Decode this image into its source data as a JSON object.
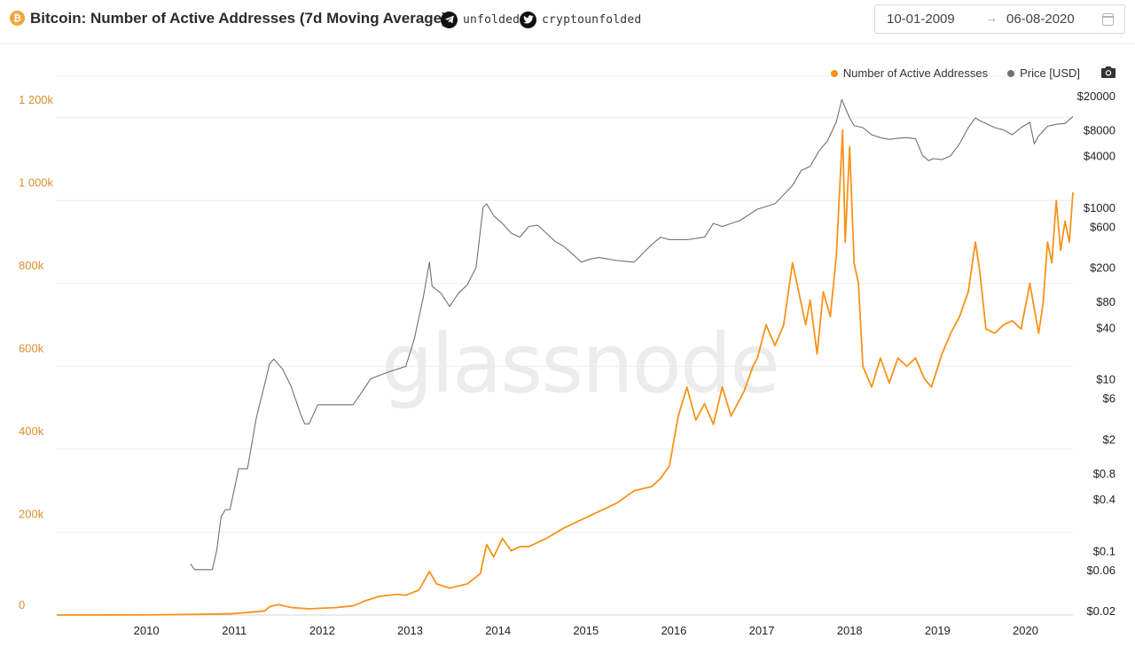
{
  "header": {
    "title": "Bitcoin: Number of Active Addresses (7d Moving Average)",
    "telegram": "unfolded",
    "twitter": "cryptounfolded",
    "date_from": "10-01-2009",
    "date_to": "06-08-2020",
    "icons": [
      "bitcoin-icon",
      "telegram-icon",
      "twitter-icon",
      "calendar-icon",
      "camera-icon"
    ]
  },
  "watermark": "glassnode",
  "colors": {
    "addresses": "#F7931A",
    "price": "#707070",
    "left_axis": "#D98F2B"
  },
  "chart_data": {
    "type": "line",
    "legend_position": "top-right",
    "grid": true,
    "x_ticks": [
      "2010",
      "2011",
      "2012",
      "2013",
      "2014",
      "2015",
      "2016",
      "2017",
      "2018",
      "2019",
      "2020"
    ],
    "xlim": [
      2009.03,
      2020.59
    ],
    "left_axis": {
      "ticks": [
        "0",
        "200k",
        "400k",
        "600k",
        "800k",
        "1 000k",
        "1 200k"
      ],
      "ylim": [
        0,
        1300000
      ]
    },
    "right_axis": {
      "scale": "log",
      "ticks": [
        "$20000",
        "$8000",
        "$4000",
        "$1000",
        "$600",
        "$200",
        "$80",
        "$40",
        "$10",
        "$6",
        "$2",
        "$0.8",
        "$0.4",
        "$0.1",
        "$0.06",
        "$0.02"
      ]
    },
    "series": [
      {
        "name": "Number of Active Addresses",
        "axis": "left",
        "x": [
          2009.03,
          2010.0,
          2010.6,
          2011.0,
          2011.2,
          2011.4,
          2011.45,
          2011.55,
          2011.7,
          2011.9,
          2012.2,
          2012.4,
          2012.55,
          2012.7,
          2012.9,
          2013.0,
          2013.15,
          2013.27,
          2013.35,
          2013.5,
          2013.7,
          2013.85,
          2013.92,
          2014.0,
          2014.1,
          2014.2,
          2014.3,
          2014.4,
          2014.6,
          2014.8,
          2015.0,
          2015.2,
          2015.4,
          2015.6,
          2015.8,
          2015.9,
          2016.0,
          2016.05,
          2016.1,
          2016.2,
          2016.3,
          2016.4,
          2016.5,
          2016.6,
          2016.7,
          2016.85,
          2016.95,
          2017.0,
          2017.1,
          2017.2,
          2017.3,
          2017.4,
          2017.55,
          2017.6,
          2017.68,
          2017.75,
          2017.83,
          2017.9,
          2017.97,
          2018.0,
          2018.05,
          2018.1,
          2018.15,
          2018.2,
          2018.3,
          2018.4,
          2018.5,
          2018.6,
          2018.7,
          2018.8,
          2018.9,
          2018.98,
          2019.1,
          2019.2,
          2019.3,
          2019.4,
          2019.48,
          2019.53,
          2019.6,
          2019.7,
          2019.8,
          2019.9,
          2020.0,
          2020.1,
          2020.2,
          2020.25,
          2020.3,
          2020.35,
          2020.4,
          2020.45,
          2020.5,
          2020.55,
          2020.59
        ],
        "values": [
          0,
          300,
          1500,
          3000,
          6000,
          10000,
          20000,
          25000,
          18000,
          15000,
          18000,
          22000,
          35000,
          45000,
          50000,
          48000,
          60000,
          105000,
          75000,
          65000,
          75000,
          100000,
          170000,
          140000,
          185000,
          155000,
          165000,
          165000,
          185000,
          210000,
          230000,
          250000,
          270000,
          300000,
          310000,
          330000,
          360000,
          420000,
          480000,
          550000,
          470000,
          510000,
          460000,
          550000,
          480000,
          540000,
          600000,
          620000,
          700000,
          650000,
          700000,
          850000,
          700000,
          760000,
          630000,
          780000,
          720000,
          870000,
          1170000,
          900000,
          1130000,
          850000,
          800000,
          600000,
          550000,
          620000,
          560000,
          620000,
          600000,
          620000,
          570000,
          550000,
          630000,
          680000,
          720000,
          780000,
          900000,
          830000,
          690000,
          680000,
          700000,
          710000,
          690000,
          800000,
          680000,
          750000,
          900000,
          850000,
          1000000,
          880000,
          950000,
          900000,
          1020000
        ]
      },
      {
        "name": "Price [USD]",
        "axis": "right",
        "x": [
          2010.55,
          2010.6,
          2010.7,
          2010.8,
          2010.85,
          2010.9,
          2010.95,
          2011.0,
          2011.1,
          2011.2,
          2011.3,
          2011.4,
          2011.45,
          2011.5,
          2011.6,
          2011.7,
          2011.8,
          2011.85,
          2011.9,
          2012.0,
          2012.1,
          2012.2,
          2012.3,
          2012.4,
          2012.5,
          2012.6,
          2012.7,
          2012.8,
          2012.9,
          2013.0,
          2013.1,
          2013.2,
          2013.27,
          2013.3,
          2013.4,
          2013.5,
          2013.6,
          2013.7,
          2013.8,
          2013.88,
          2013.92,
          2014.0,
          2014.1,
          2014.2,
          2014.3,
          2014.4,
          2014.5,
          2014.6,
          2014.7,
          2014.8,
          2015.0,
          2015.1,
          2015.2,
          2015.4,
          2015.6,
          2015.8,
          2015.9,
          2016.0,
          2016.2,
          2016.4,
          2016.5,
          2016.6,
          2016.8,
          2017.0,
          2017.2,
          2017.4,
          2017.5,
          2017.6,
          2017.7,
          2017.8,
          2017.9,
          2017.96,
          2018.05,
          2018.1,
          2018.2,
          2018.3,
          2018.4,
          2018.5,
          2018.6,
          2018.7,
          2018.8,
          2018.88,
          2018.95,
          2019.0,
          2019.1,
          2019.2,
          2019.3,
          2019.4,
          2019.48,
          2019.55,
          2019.6,
          2019.7,
          2019.8,
          2019.9,
          2020.0,
          2020.1,
          2020.15,
          2020.2,
          2020.3,
          2020.4,
          2020.5,
          2020.59
        ],
        "values": [
          0.07,
          0.06,
          0.06,
          0.06,
          0.1,
          0.25,
          0.3,
          0.3,
          0.9,
          0.9,
          3.5,
          9,
          15,
          17,
          13,
          8,
          4,
          3,
          3,
          5,
          5,
          5,
          5,
          5,
          7,
          10,
          11,
          12,
          13,
          14,
          30,
          90,
          230,
          120,
          100,
          70,
          100,
          125,
          200,
          1000,
          1100,
          800,
          650,
          500,
          450,
          600,
          620,
          500,
          400,
          350,
          230,
          250,
          260,
          240,
          230,
          370,
          450,
          420,
          420,
          450,
          650,
          600,
          700,
          950,
          1100,
          1800,
          2700,
          3000,
          4500,
          6000,
          10000,
          18000,
          11000,
          9000,
          8500,
          7000,
          6500,
          6200,
          6400,
          6500,
          6300,
          4000,
          3500,
          3700,
          3600,
          4000,
          5500,
          8500,
          11000,
          10000,
          9500,
          8500,
          8000,
          7000,
          8500,
          9800,
          5500,
          6800,
          8800,
          9300,
          9500,
          11500
        ]
      }
    ]
  }
}
